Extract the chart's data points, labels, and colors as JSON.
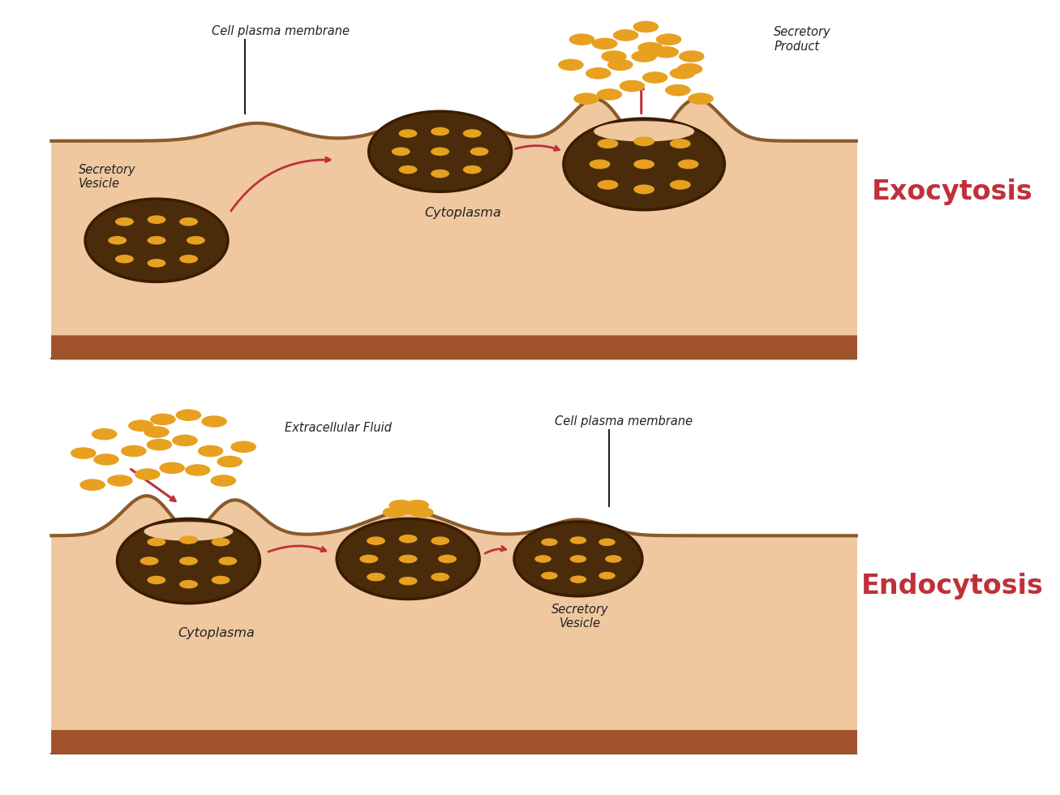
{
  "bg_color": "#ffffff",
  "skin_fill": "#f0c8a0",
  "skin_stroke": "#8B5A2B",
  "bottom_fill": "#a0522d",
  "vesicle_fill": "#4a2c0a",
  "vesicle_stroke": "#3a1c00",
  "dot_color": "#e8a020",
  "arrow_color": "#c0303a",
  "text_color": "#222222",
  "label_color_exo": "#c0303a",
  "label_color_endo": "#c0303a",
  "exo_title": "Exocytosis",
  "endo_title": "Endocytosis",
  "exo_labels": {
    "plasma_membrane": "Cell plasma membrane",
    "secretory_vesicle": "Secretory\nVesicle",
    "cytoplasma": "Cytoplasma",
    "secretory_product": "Secretory\nProduct"
  },
  "endo_labels": {
    "extracellular_fluid": "Extracellular Fluid",
    "plasma_membrane": "Cell plasma membrane",
    "cytoplasma": "Cytoplasma",
    "secretory_vesicle": "Secretory\nVesicle"
  }
}
